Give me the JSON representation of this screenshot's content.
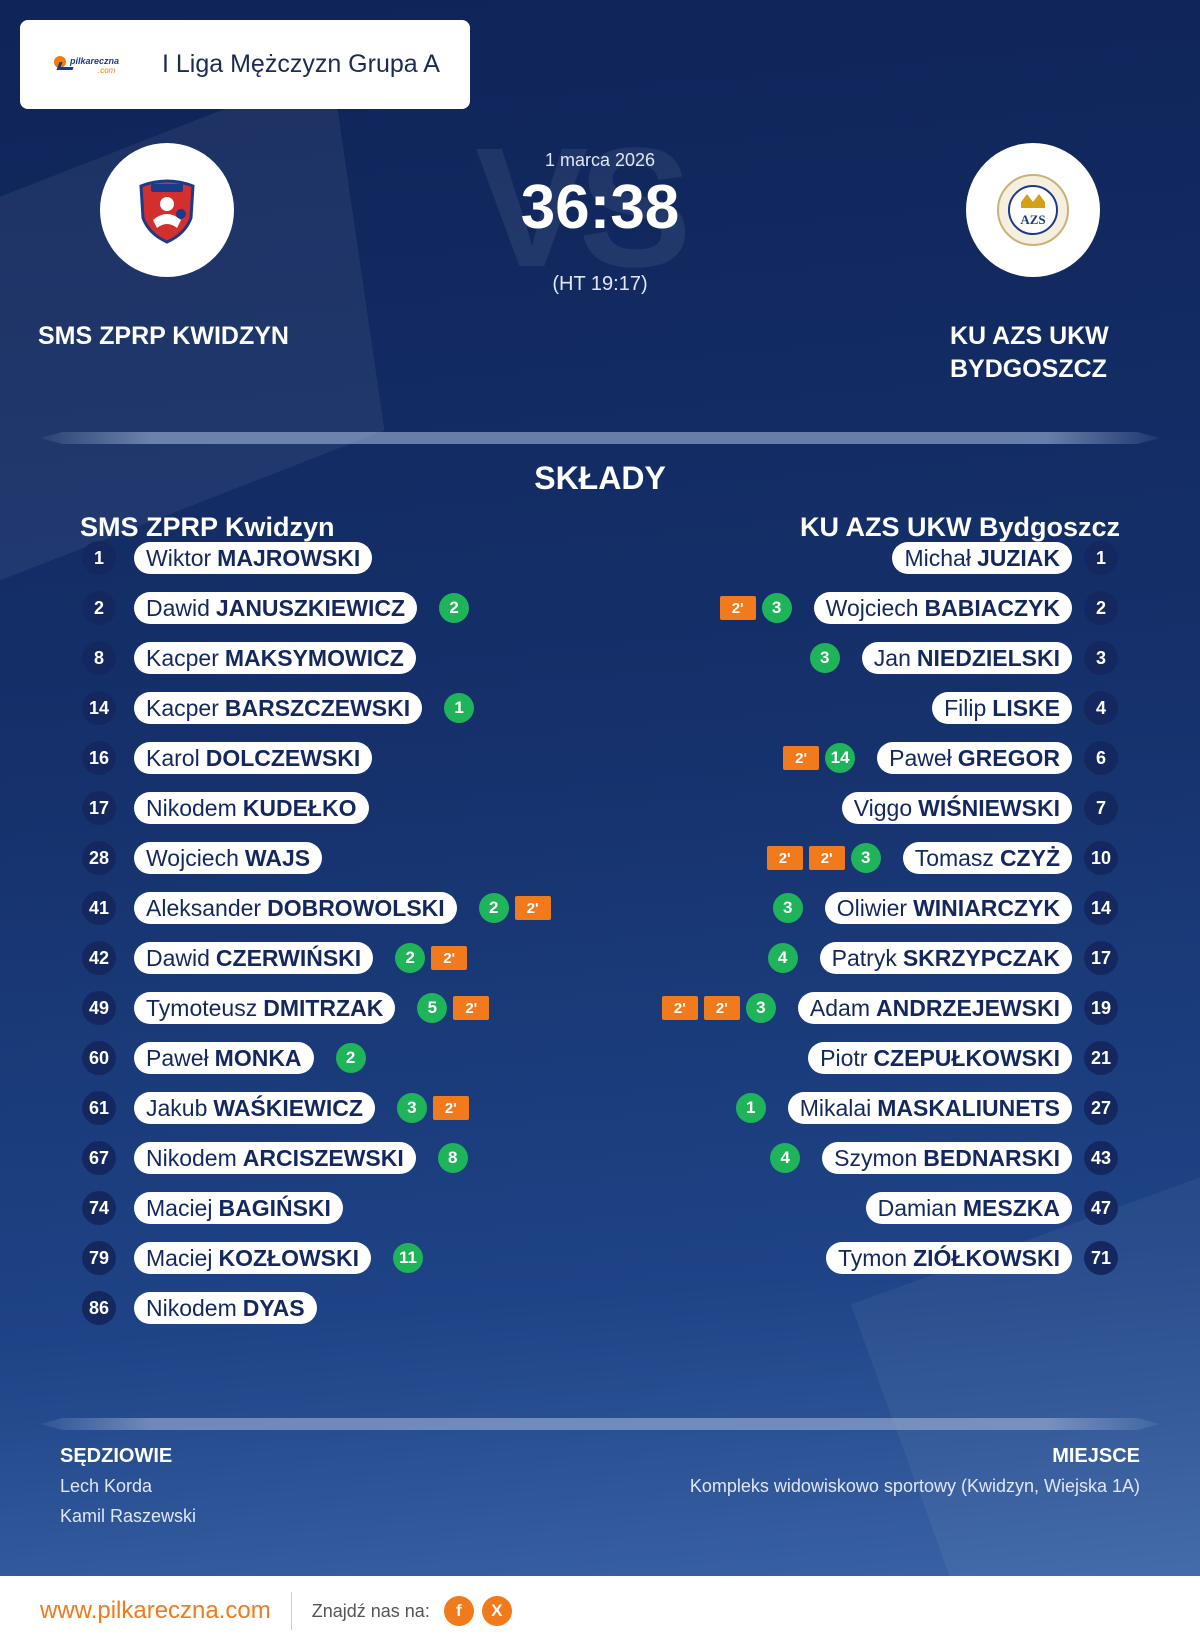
{
  "league": {
    "name": "I Liga Mężczyzn Grupa A",
    "site_logo_text": "pilkareczna",
    "site_logo_suffix": ".com"
  },
  "match": {
    "date": "1 marca 2026",
    "score": "36:38",
    "halftime": "(HT 19:17)",
    "vs_watermark": "VS"
  },
  "home": {
    "name": "SMS ZPRP KWIDZYN",
    "short": "SMS ZPRP Kwidzyn",
    "logo_color": "#d32f2f"
  },
  "away": {
    "name_line1": "KU AZS UKW",
    "name_line2": "BYDGOSZCZ",
    "short": "KU AZS UKW Bydgoszcz",
    "logo_text": "AZS",
    "logo_color": "#1a3a8a"
  },
  "lineups_title": "SKŁADY",
  "home_players": [
    {
      "num": "1",
      "first": "Wiktor",
      "last": "MAJROWSKI",
      "goals": "",
      "susp": []
    },
    {
      "num": "2",
      "first": "Dawid",
      "last": "JANUSZKIEWICZ",
      "goals": "2",
      "susp": []
    },
    {
      "num": "8",
      "first": "Kacper",
      "last": "MAKSYMOWICZ",
      "goals": "",
      "susp": []
    },
    {
      "num": "14",
      "first": "Kacper",
      "last": "BARSZCZEWSKI",
      "goals": "1",
      "susp": []
    },
    {
      "num": "16",
      "first": "Karol",
      "last": "DOLCZEWSKI",
      "goals": "",
      "susp": []
    },
    {
      "num": "17",
      "first": "Nikodem",
      "last": "KUDEŁKO",
      "goals": "",
      "susp": []
    },
    {
      "num": "28",
      "first": "Wojciech",
      "last": "WAJS",
      "goals": "",
      "susp": []
    },
    {
      "num": "41",
      "first": "Aleksander",
      "last": "DOBROWOLSKI",
      "goals": "2",
      "susp": [
        "2'"
      ]
    },
    {
      "num": "42",
      "first": "Dawid",
      "last": "CZERWIŃSKI",
      "goals": "2",
      "susp": [
        "2'"
      ]
    },
    {
      "num": "49",
      "first": "Tymoteusz",
      "last": "DMITRZAK",
      "goals": "5",
      "susp": [
        "2'"
      ]
    },
    {
      "num": "60",
      "first": "Paweł",
      "last": "MONKA",
      "goals": "2",
      "susp": []
    },
    {
      "num": "61",
      "first": "Jakub",
      "last": "WAŚKIEWICZ",
      "goals": "3",
      "susp": [
        "2'"
      ]
    },
    {
      "num": "67",
      "first": "Nikodem",
      "last": "ARCISZEWSKI",
      "goals": "8",
      "susp": []
    },
    {
      "num": "74",
      "first": "Maciej",
      "last": "BAGIŃSKI",
      "goals": "",
      "susp": []
    },
    {
      "num": "79",
      "first": "Maciej",
      "last": "KOZŁOWSKI",
      "goals": "11",
      "susp": []
    },
    {
      "num": "86",
      "first": "Nikodem",
      "last": "DYAS",
      "goals": "",
      "susp": []
    }
  ],
  "away_players": [
    {
      "num": "1",
      "first": "Michał",
      "last": "JUZIAK",
      "goals": "",
      "susp": []
    },
    {
      "num": "2",
      "first": "Wojciech",
      "last": "BABIACZYK",
      "goals": "3",
      "susp": [
        "2'"
      ]
    },
    {
      "num": "3",
      "first": "Jan",
      "last": "NIEDZIELSKI",
      "goals": "3",
      "susp": []
    },
    {
      "num": "4",
      "first": "Filip",
      "last": "LISKE",
      "goals": "",
      "susp": []
    },
    {
      "num": "6",
      "first": "Paweł",
      "last": "GREGOR",
      "goals": "14",
      "susp": [
        "2'"
      ]
    },
    {
      "num": "7",
      "first": "Viggo",
      "last": "WIŚNIEWSKI",
      "goals": "",
      "susp": []
    },
    {
      "num": "10",
      "first": "Tomasz",
      "last": "CZYŻ",
      "goals": "3",
      "susp": [
        "2'",
        "2'"
      ]
    },
    {
      "num": "14",
      "first": "Oliwier",
      "last": "WINIARCZYK",
      "goals": "3",
      "susp": []
    },
    {
      "num": "17",
      "first": "Patryk",
      "last": "SKRZYPCZAK",
      "goals": "4",
      "susp": []
    },
    {
      "num": "19",
      "first": "Adam",
      "last": "ANDRZEJEWSKI",
      "goals": "3",
      "susp": [
        "2'",
        "2'"
      ]
    },
    {
      "num": "21",
      "first": "Piotr",
      "last": "CZEPUŁKOWSKI",
      "goals": "",
      "susp": []
    },
    {
      "num": "27",
      "first": "Mikalai",
      "last": "MASKALIUNETS",
      "goals": "1",
      "susp": []
    },
    {
      "num": "43",
      "first": "Szymon",
      "last": "BEDNARSKI",
      "goals": "4",
      "susp": []
    },
    {
      "num": "47",
      "first": "Damian",
      "last": "MESZKA",
      "goals": "",
      "susp": []
    },
    {
      "num": "71",
      "first": "Tymon",
      "last": "ZIÓŁKOWSKI",
      "goals": "",
      "susp": []
    }
  ],
  "referees": {
    "title": "SĘDZIOWIE",
    "names": [
      "Lech Korda",
      "Kamil Raszewski"
    ]
  },
  "venue": {
    "title": "MIEJSCE",
    "text": "Kompleks widowiskowo sportowy (Kwidzyn, Wiejska 1A)"
  },
  "footer": {
    "url": "www.pilkareczna.com",
    "find_us": "Znajdź nas na:",
    "social": [
      {
        "icon": "facebook-icon",
        "glyph": "f"
      },
      {
        "icon": "x-icon",
        "glyph": "X"
      }
    ]
  },
  "colors": {
    "goal": "#1fb45a",
    "suspension": "#f07a1c",
    "accent": "#f07a1c",
    "background": "#14285f"
  }
}
